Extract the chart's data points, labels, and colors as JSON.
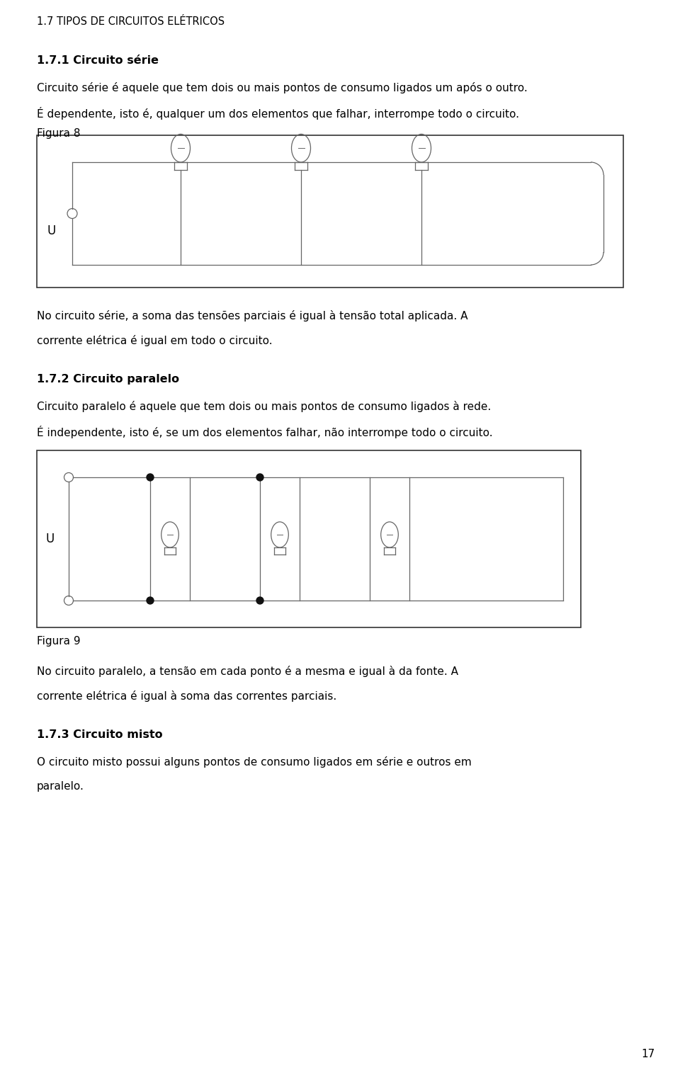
{
  "bg_color": "#ffffff",
  "text_color": "#000000",
  "title": "1.7 TIPOS DE CIRCUITOS ELÉTRICOS",
  "section1_title": "1.7.1 Circuito série",
  "section1_body1": "Circuito série é aquele que tem dois ou mais pontos de consumo ligados um após o outro.",
  "section1_body2": "É dependente, isto é, qualquer um dos elementos que falhar, interrompe todo o circuito.",
  "figura8_label": "Figura 8",
  "text_after_fig8a": "No circuito série, a soma das tensões parciais é igual à tensão total aplicada. A",
  "text_after_fig8b": "corrente elétrica é igual em todo o circuito.",
  "section2_title": "1.7.2 Circuito paralelo",
  "section2_body1": "Circuito paralelo é aquele que tem dois ou mais pontos de consumo ligados à rede.",
  "section2_body2": "É independente, isto é, se um dos elementos falhar, não interrompe todo o circuito.",
  "figura9_label": "Figura 9",
  "text_after_fig9a": "No circuito paralelo, a tensão em cada ponto é a mesma e igual à da fonte. A",
  "text_after_fig9b": "corrente elétrica é igual à soma das correntes parciais.",
  "section3_title": "1.7.3 Circuito misto",
  "section3_body1": "O circuito misto possui alguns pontos de consumo ligados em série e outros em",
  "section3_body2": "paralelo.",
  "page_number": "17"
}
